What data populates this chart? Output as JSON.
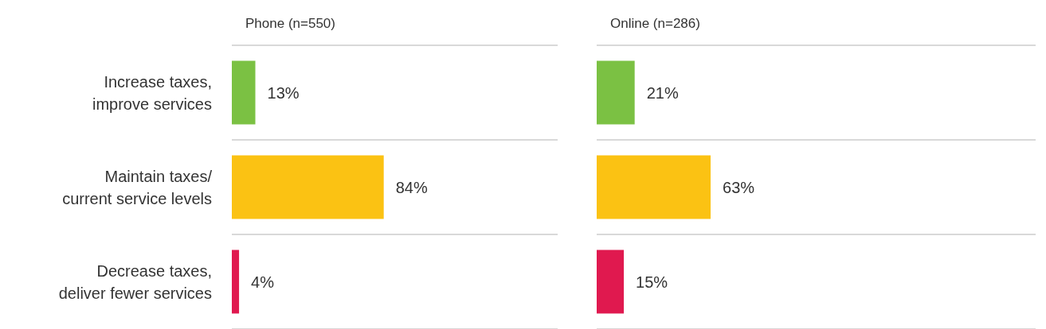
{
  "chart_data": [
    {
      "type": "bar",
      "orientation": "horizontal",
      "title": "Phone (n=550)",
      "categories": [
        "Increase taxes,\nimprove services",
        "Maintain taxes/\ncurrent service levels",
        "Decrease taxes,\ndeliver fewer services"
      ],
      "values": [
        13,
        84,
        4
      ],
      "value_labels": [
        "13%",
        "84%",
        "4%"
      ],
      "colors": [
        "#7bc143",
        "#fbc213",
        "#e0194f"
      ],
      "tick_labels": "y",
      "grid": "y"
    },
    {
      "type": "bar",
      "orientation": "horizontal",
      "title": "Online (n=286)",
      "categories": [
        null,
        null,
        null
      ],
      "values": [
        21,
        63,
        15
      ],
      "value_labels": [
        "21%",
        "63%",
        "15%"
      ],
      "colors": [
        "#7bc143",
        "#fbc213",
        "#e0194f"
      ],
      "tick_labels": false,
      "grid": "y"
    }
  ]
}
